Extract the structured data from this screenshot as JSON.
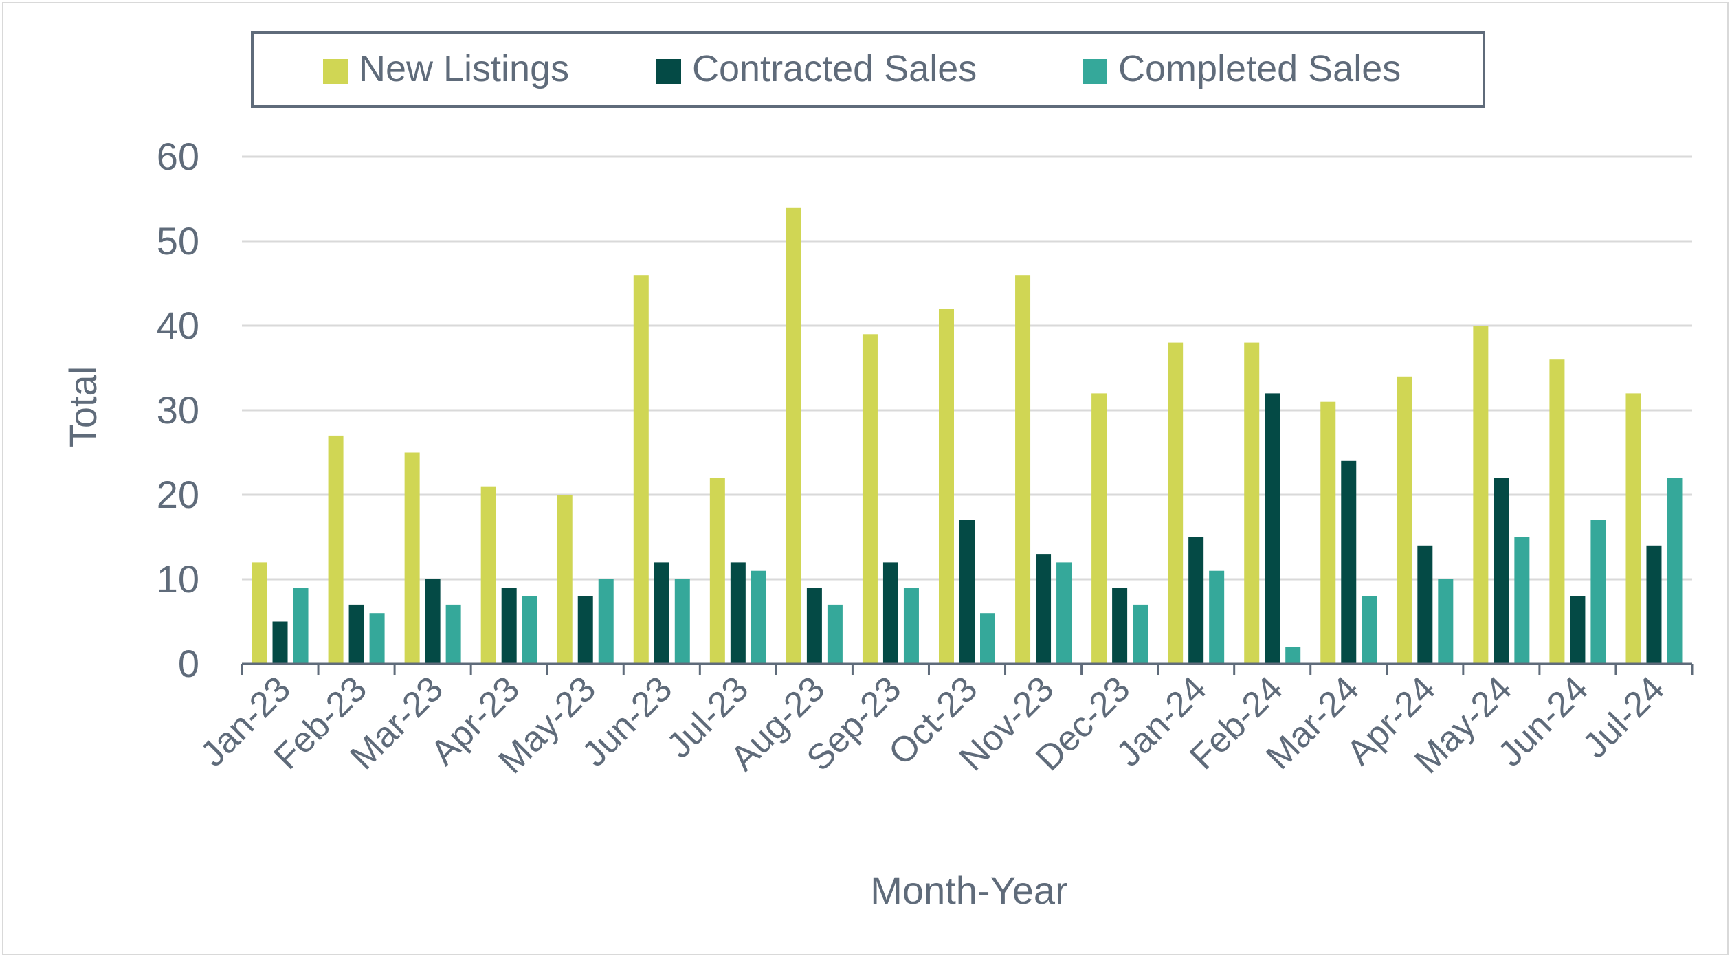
{
  "chart_data": {
    "type": "bar",
    "title": "",
    "xlabel": "Month-Year",
    "ylabel": "Total",
    "ylim": [
      0,
      60
    ],
    "yticks": [
      "0",
      "10",
      "20",
      "30",
      "40",
      "50",
      "60"
    ],
    "grid": true,
    "legend_position": "top",
    "categories": [
      "Jan-23",
      "Feb-23",
      "Mar-23",
      "Apr-23",
      "May-23",
      "Jun-23",
      "Jul-23",
      "Aug-23",
      "Sep-23",
      "Oct-23",
      "Nov-23",
      "Dec-23",
      "Jan-24",
      "Feb-24",
      "Mar-24",
      "Apr-24",
      "May-24",
      "Jun-24",
      "Jul-24"
    ],
    "series": [
      {
        "name": "New Listings",
        "color": "#d0d654",
        "values": [
          12,
          27,
          25,
          21,
          20,
          46,
          22,
          54,
          39,
          42,
          46,
          32,
          38,
          38,
          31,
          34,
          40,
          36,
          32
        ]
      },
      {
        "name": "Contracted Sales",
        "color": "#044a45",
        "values": [
          5,
          7,
          10,
          9,
          8,
          12,
          12,
          9,
          12,
          17,
          13,
          9,
          15,
          32,
          24,
          14,
          22,
          8,
          14
        ]
      },
      {
        "name": "Completed Sales",
        "color": "#35a89a",
        "values": [
          9,
          6,
          7,
          8,
          10,
          10,
          11,
          7,
          9,
          6,
          12,
          7,
          11,
          2,
          8,
          10,
          15,
          17,
          22
        ]
      }
    ]
  }
}
